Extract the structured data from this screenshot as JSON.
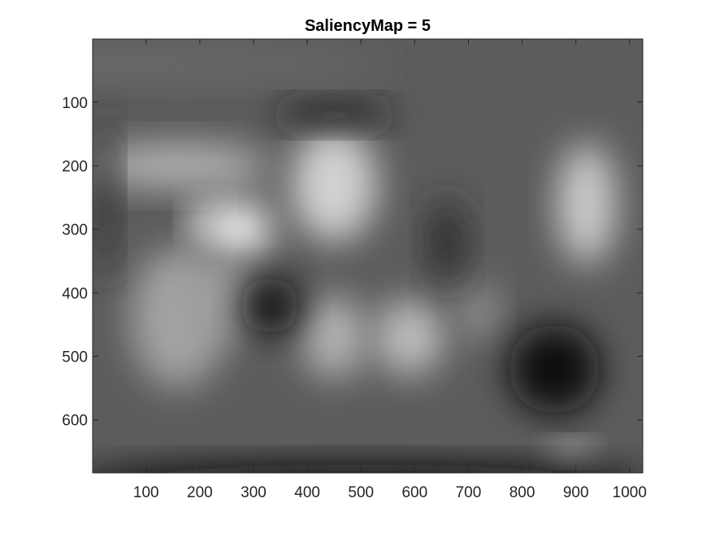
{
  "title": "SaliencyMap = 5",
  "chart_data": {
    "type": "heatmap",
    "title": "SaliencyMap = 5",
    "colormap": "gray",
    "xlabel": "",
    "ylabel": "",
    "xlim": [
      0.5,
      1024.5
    ],
    "ylim": [
      0.5,
      683.5
    ],
    "y_direction": "reverse",
    "x_ticks": [
      100,
      200,
      300,
      400,
      500,
      600,
      700,
      800,
      900,
      1000
    ],
    "y_ticks": [
      100,
      200,
      300,
      400,
      500,
      600
    ],
    "x_tick_labels": [
      "100",
      "200",
      "300",
      "400",
      "500",
      "600",
      "700",
      "800",
      "900",
      "1000"
    ],
    "y_tick_labels": [
      "100",
      "200",
      "300",
      "400",
      "500",
      "600"
    ],
    "grid": false,
    "box": true,
    "bright_regions": [
      {
        "x": 160,
        "y": 200,
        "w": 340,
        "h": 70,
        "level": 0.7
      },
      {
        "x": 40,
        "y": 40,
        "w": 1000,
        "h": 55,
        "level": 0.42
      },
      {
        "x": 450,
        "y": 230,
        "w": 160,
        "h": 180,
        "level": 0.82
      },
      {
        "x": 270,
        "y": 300,
        "w": 130,
        "h": 90,
        "level": 0.92
      },
      {
        "x": 210,
        "y": 290,
        "w": 60,
        "h": 60,
        "level": 0.86
      },
      {
        "x": 160,
        "y": 440,
        "w": 180,
        "h": 220,
        "level": 0.64
      },
      {
        "x": 240,
        "y": 410,
        "w": 160,
        "h": 120,
        "level": 0.62
      },
      {
        "x": 450,
        "y": 470,
        "w": 120,
        "h": 130,
        "level": 0.7
      },
      {
        "x": 590,
        "y": 470,
        "w": 130,
        "h": 120,
        "level": 0.74
      },
      {
        "x": 920,
        "y": 260,
        "w": 110,
        "h": 190,
        "level": 0.8
      },
      {
        "x": 890,
        "y": 650,
        "w": 70,
        "h": 30,
        "level": 0.86
      },
      {
        "x": 720,
        "y": 430,
        "w": 70,
        "h": 90,
        "level": 0.58
      }
    ],
    "dark_regions": [
      {
        "x": 330,
        "y": 420,
        "w": 110,
        "h": 90,
        "level": 0.06
      },
      {
        "x": 660,
        "y": 320,
        "w": 70,
        "h": 130,
        "level": 0.16
      },
      {
        "x": 860,
        "y": 520,
        "w": 170,
        "h": 140,
        "level": 0.04
      },
      {
        "x": 500,
        "y": 700,
        "w": 1100,
        "h": 60,
        "level": 0.03
      },
      {
        "x": 25,
        "y": 250,
        "w": 40,
        "h": 260,
        "level": 0.18
      },
      {
        "x": 450,
        "y": 120,
        "w": 220,
        "h": 40,
        "level": 0.1
      }
    ]
  }
}
